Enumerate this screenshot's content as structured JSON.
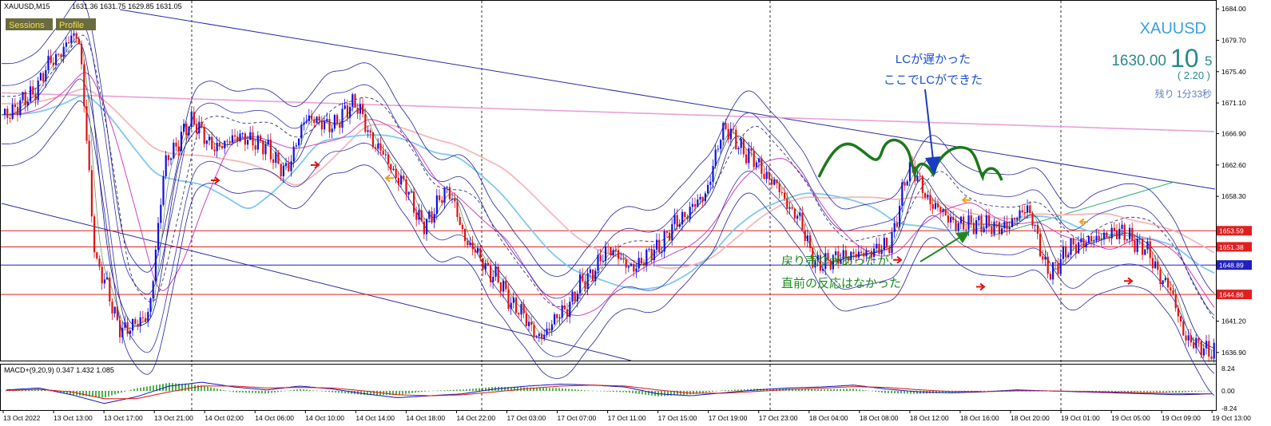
{
  "chart_data": [
    {
      "type": "line",
      "panel": "main",
      "title": "XAUUSD,M15",
      "ohlc_text": "1631.36 1631.75 1629.85 1631.05",
      "buttons": [
        "Sessions",
        "Profile"
      ],
      "symbol_big": "XAUUSD",
      "price_main": "1630.00",
      "price_big_digits": "10",
      "price_small_digit": "5",
      "change_text": "( 2.20 )",
      "timer_text": "残り 1分33秒",
      "y_ticks": [
        1684.0,
        1679.7,
        1675.4,
        1671.1,
        1666.9,
        1662.6,
        1658.3,
        1653.59,
        1651.38,
        1648.89,
        1644.86,
        1641.2,
        1636.9
      ],
      "y_tick_labels": [
        "1684.00",
        "1679.70",
        "1675.40",
        "1671.10",
        "1666.90",
        "1662.60",
        "1658.30",
        "1653.59",
        "1651.38",
        "1648.89",
        "1644.86",
        "1641.20",
        "1636.90"
      ],
      "ylim": [
        1635.9,
        1685.0
      ],
      "horizontal_lines": [
        {
          "value": 1653.59,
          "label": "1653.59",
          "color": "#e02020"
        },
        {
          "value": 1651.38,
          "label": "1651.38",
          "color": "#e02020"
        },
        {
          "value": 1648.89,
          "label": "1648.89",
          "color": "#2020c0"
        },
        {
          "value": 1644.86,
          "label": "1644.86",
          "color": "#e02020"
        }
      ],
      "annotations": [
        {
          "text": "LCが遅かった",
          "color": "#1a4fd0"
        },
        {
          "text": "ここでLCができた",
          "color": "#1a4fd0"
        },
        {
          "text": "戻り売りがあったが、",
          "color": "#1e8a1e"
        },
        {
          "text": "直前の反応はなかった",
          "color": "#1e8a1e"
        }
      ],
      "close_series": [
        1669.5,
        1672.0,
        1677.0,
        1680.5,
        1648.0,
        1640.0,
        1641.5,
        1664.0,
        1668.5,
        1665.0,
        1666.5,
        1665.5,
        1662.0,
        1669.0,
        1668.0,
        1671.0,
        1665.0,
        1660.5,
        1654.5,
        1659.0,
        1651.5,
        1647.5,
        1643.0,
        1639.0,
        1642.5,
        1647.0,
        1651.0,
        1648.5,
        1651.0,
        1655.0,
        1658.0,
        1667.5,
        1664.0,
        1660.5,
        1656.0,
        1649.0,
        1650.0,
        1650.5,
        1651.5,
        1662.0,
        1657.0,
        1654.5,
        1654.5,
        1654.0,
        1656.5,
        1648.0,
        1651.5,
        1652.5,
        1653.5,
        1651.5,
        1646.5,
        1638.5,
        1637.0
      ]
    },
    {
      "type": "line",
      "panel": "macd",
      "title": "MACD+(9,20,9) 0.347 1.432 1.085",
      "y_tick_labels": [
        "8.24",
        "0.00",
        "-8.24"
      ],
      "ylim": [
        -8.24,
        8.24
      ],
      "x_tick_labels": [
        "13 Oct 2022",
        "13 Oct 13:00",
        "13 Oct 17:00",
        "13 Oct 21:00",
        "14 Oct 02:00",
        "14 Oct 06:00",
        "14 Oct 10:00",
        "14 Oct 14:00",
        "14 Oct 18:00",
        "14 Oct 22:00",
        "17 Oct 03:00",
        "17 Oct 07:00",
        "17 Oct 11:00",
        "17 Oct 15:00",
        "17 Oct 19:00",
        "17 Oct 23:00",
        "18 Oct 04:00",
        "18 Oct 08:00",
        "18 Oct 12:00",
        "18 Oct 16:00",
        "18 Oct 20:00",
        "19 Oct 01:00",
        "19 Oct 05:00",
        "19 Oct 09:00",
        "19 Oct 13:00"
      ],
      "series": [
        {
          "name": "MACD",
          "values": [
            0.5,
            1.5,
            -2.0,
            -6.5,
            -3.0,
            2.5,
            4.5,
            2.0,
            0.5,
            2.5,
            1.0,
            -1.5,
            -3.5,
            -2.5,
            -1.5,
            1.0,
            2.5,
            3.5,
            3.0,
            2.0,
            -1.5,
            -2.5,
            -1.0,
            0.5,
            1.5,
            2.0,
            3.0,
            1.0,
            -0.5,
            -1.0,
            -0.5,
            0.5,
            0.0,
            -0.5,
            -1.0,
            -1.5,
            -2.0,
            -1.5
          ]
        },
        {
          "name": "Signal",
          "values": [
            0.2,
            0.8,
            -0.5,
            -4.0,
            -4.0,
            -0.5,
            2.5,
            2.5,
            1.5,
            1.8,
            1.5,
            0.0,
            -2.0,
            -2.5,
            -2.0,
            -0.5,
            1.2,
            2.5,
            3.0,
            2.5,
            0.5,
            -1.2,
            -1.2,
            -0.3,
            0.7,
            1.4,
            2.2,
            1.8,
            0.6,
            -0.3,
            -0.4,
            0.0,
            0.0,
            -0.3,
            -0.6,
            -1.0,
            -1.4,
            -1.5
          ]
        }
      ]
    }
  ]
}
